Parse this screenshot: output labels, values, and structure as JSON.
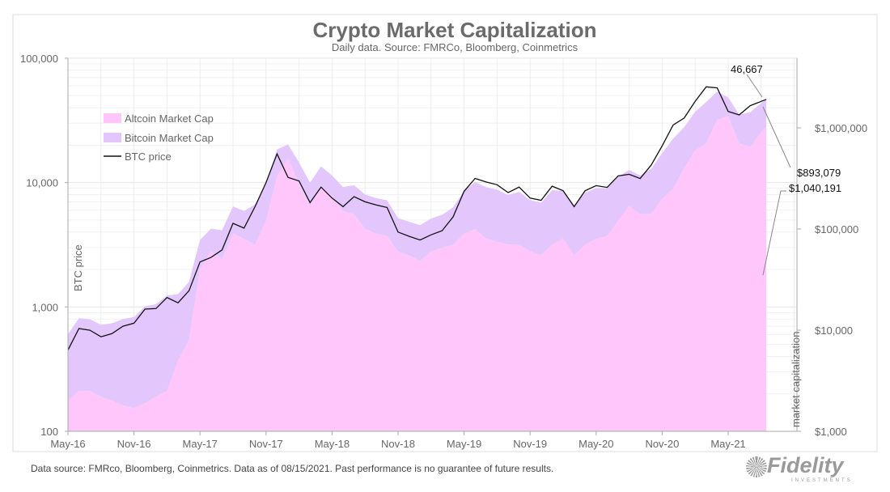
{
  "chart_data": {
    "type": "area",
    "title": "Crypto Market Capitalization",
    "subtitle": "Daily data.  Source: FMRCo, Bloomberg, Coinmetrics",
    "ylabel_left": "BTC price",
    "ylabel_right": "market capitalization",
    "ylim_left": [
      100,
      100000
    ],
    "ylim_right_millions": [
      1000,
      5000000
    ],
    "yscale": "log",
    "left_ticks": [
      {
        "v": 100000,
        "label": "100,000"
      },
      {
        "v": 10000,
        "label": "10,000"
      },
      {
        "v": 1000,
        "label": "1,000"
      },
      {
        "v": 100,
        "label": "100"
      }
    ],
    "right_ticks": [
      {
        "v": 1000000,
        "label": "$1,000,000"
      },
      {
        "v": 100000,
        "label": "$100,000"
      },
      {
        "v": 10000,
        "label": "$10,000"
      },
      {
        "v": 1000,
        "label": "$1,000"
      }
    ],
    "x_ticks": [
      "May-16",
      "Nov-16",
      "May-17",
      "Nov-17",
      "May-18",
      "Nov-18",
      "May-19",
      "Nov-19",
      "May-20",
      "Nov-20",
      "May-21"
    ],
    "legend": [
      {
        "name": "Altcoin Market Cap",
        "color": "#ffc6fb"
      },
      {
        "name": "Bitcoin Market Cap",
        "color": "#e3c6fb"
      },
      {
        "name": "BTC price",
        "color": "#111111"
      }
    ],
    "legend_position": "upper-left",
    "dates": [
      "2016-05",
      "2016-06",
      "2016-07",
      "2016-08",
      "2016-09",
      "2016-10",
      "2016-11",
      "2016-12",
      "2017-01",
      "2017-02",
      "2017-03",
      "2017-04",
      "2017-05",
      "2017-06",
      "2017-07",
      "2017-08",
      "2017-09",
      "2017-10",
      "2017-11",
      "2017-12",
      "2018-01",
      "2018-02",
      "2018-03",
      "2018-04",
      "2018-05",
      "2018-06",
      "2018-07",
      "2018-08",
      "2018-09",
      "2018-10",
      "2018-11",
      "2018-12",
      "2019-01",
      "2019-02",
      "2019-03",
      "2019-04",
      "2019-05",
      "2019-06",
      "2019-07",
      "2019-08",
      "2019-09",
      "2019-10",
      "2019-11",
      "2019-12",
      "2020-01",
      "2020-02",
      "2020-03",
      "2020-04",
      "2020-05",
      "2020-06",
      "2020-07",
      "2020-08",
      "2020-09",
      "2020-10",
      "2020-11",
      "2020-12",
      "2021-01",
      "2021-02",
      "2021-03",
      "2021-04",
      "2021-05",
      "2021-06",
      "2021-07",
      "2021-08-15"
    ],
    "btc_price": [
      450,
      670,
      650,
      575,
      610,
      700,
      740,
      960,
      970,
      1190,
      1080,
      1350,
      2300,
      2500,
      2870,
      4700,
      4300,
      6400,
      10000,
      17000,
      11000,
      10300,
      6900,
      9200,
      7500,
      6400,
      7700,
      7000,
      6600,
      6300,
      4000,
      3700,
      3450,
      3800,
      4100,
      5300,
      8500,
      10800,
      10100,
      9600,
      8300,
      9200,
      7500,
      7200,
      9350,
      8600,
      6400,
      8600,
      9450,
      9140,
      11300,
      11650,
      10780,
      13800,
      19700,
      29000,
      33000,
      45000,
      58800,
      57700,
      37300,
      35000,
      41500,
      46667
    ],
    "bitcoin_cap_millions": [
      7100,
      10600,
      10300,
      9100,
      9700,
      11100,
      11800,
      15300,
      15900,
      19500,
      17700,
      22100,
      37700,
      41000,
      47100,
      77100,
      70500,
      105000,
      164000,
      280000,
      187000,
      175000,
      117000,
      156000,
      128000,
      109000,
      131000,
      119000,
      112000,
      107000,
      68000,
      63000,
      61000,
      67000,
      73000,
      94000,
      150000,
      191000,
      179000,
      170000,
      147000,
      163000,
      133000,
      127000,
      172000,
      158000,
      118000,
      158000,
      174000,
      168000,
      208000,
      214000,
      198000,
      254000,
      362000,
      534000,
      617000,
      842000,
      1100000,
      1079000,
      698000,
      655000,
      776000,
      893079
    ],
    "altcoin_cap_millions": [
      2000,
      2500,
      2500,
      2200,
      2000,
      1800,
      1700,
      1900,
      2200,
      2500,
      5000,
      8000,
      40000,
      60000,
      50000,
      90000,
      80000,
      70000,
      120000,
      330000,
      500000,
      280000,
      170000,
      260000,
      210000,
      150000,
      140000,
      100000,
      90000,
      85000,
      60000,
      55000,
      48000,
      60000,
      65000,
      70000,
      90000,
      100000,
      80000,
      75000,
      70000,
      70000,
      60000,
      55000,
      70000,
      80000,
      55000,
      70000,
      80000,
      85000,
      120000,
      170000,
      140000,
      140000,
      200000,
      250000,
      400000,
      600000,
      700000,
      1200000,
      1300000,
      700000,
      650000,
      1040191
    ],
    "annotations": {
      "btc_last": "46,667",
      "bitcoin_cap_last": "$893,079",
      "altcoin_cap_last": "$1,040,191"
    }
  },
  "footer": "Data source: FMRco, Bloomberg, Coinmetrics. Data as of 08/15/2021. Past performance is no guarantee of future results.",
  "logo": {
    "name": "Fidelity",
    "tagline": "INVESTMENTS"
  }
}
